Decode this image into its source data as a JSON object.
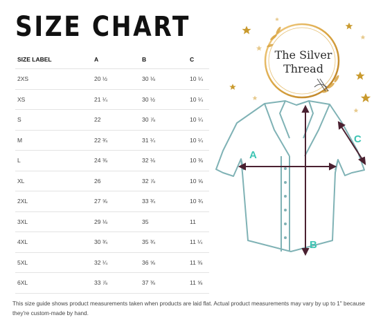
{
  "title": "SIZE CHART",
  "brand": {
    "line1": "The Silver",
    "line2": "Thread"
  },
  "table": {
    "headers": [
      "SIZE LABEL",
      "A",
      "B",
      "C"
    ],
    "rows": [
      [
        "2XS",
        "20 ½",
        "30 ⅛",
        "10 ¼"
      ],
      [
        "XS",
        "21 ¼",
        "30 ½",
        "10 ¼"
      ],
      [
        "S",
        "22",
        "30 ⅞",
        "10 ¼"
      ],
      [
        "M",
        "22 ¾",
        "31 ¼",
        "10 ¼"
      ],
      [
        "L",
        "24 ⅜",
        "32 ⅛",
        "10 ⅜"
      ],
      [
        "XL",
        "26",
        "32 ⅞",
        "10 ⅝"
      ],
      [
        "2XL",
        "27 ⅝",
        "33 ¾",
        "10 ¾"
      ],
      [
        "3XL",
        "29 ⅛",
        "35",
        "11"
      ],
      [
        "4XL",
        "30 ¾",
        "35 ¾",
        "11 ¼"
      ],
      [
        "5XL",
        "32 ¼",
        "36 ⅝",
        "11 ⅜"
      ],
      [
        "6XL",
        "33 ⅞",
        "37 ⅜",
        "11 ⅝"
      ]
    ]
  },
  "diagram": {
    "label_a": "A",
    "label_b": "B",
    "label_c": "C"
  },
  "footnote": "This size guide shows product measurements taken when products are laid flat. Actual product measurements may vary by up to 1\" because they're custom-made by hand.",
  "colors": {
    "shirt_outline": "#7fb2b5",
    "measure_line": "#4a2030",
    "label": "#3cc4b3",
    "gold": "#d9a441",
    "star": "#c99a2e"
  }
}
